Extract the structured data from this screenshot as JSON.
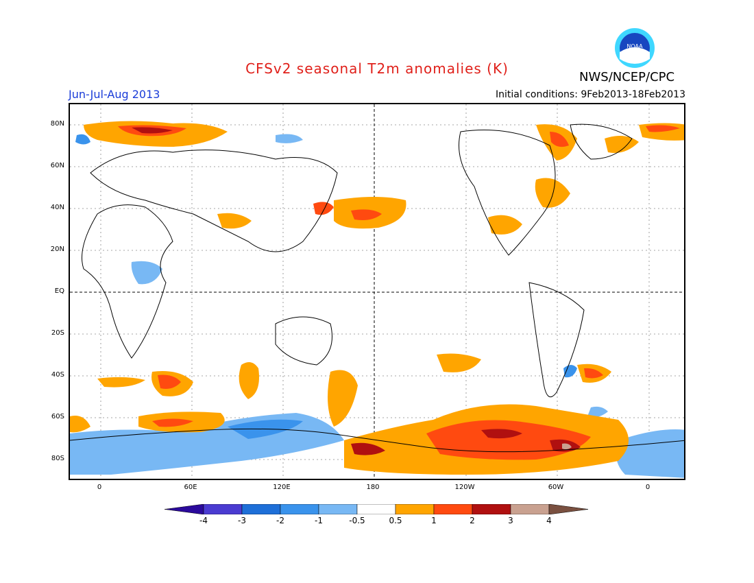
{
  "title": "CFSv2 seasonal T2m anomalies (K)",
  "agency": "NWS/NCEP/CPC",
  "logo_text": "NOAA",
  "season": "Jun-Jul-Aug 2013",
  "initial_conditions": "Initial conditions: 9Feb2013-18Feb2013",
  "lat_labels": [
    "80N",
    "60N",
    "40N",
    "20N",
    "EQ",
    "20S",
    "40S",
    "60S",
    "80S"
  ],
  "lon_labels": [
    "0",
    "60E",
    "120E",
    "180",
    "120W",
    "60W",
    "0"
  ],
  "colorbar": {
    "labels": [
      "-4",
      "-3",
      "-2",
      "-1",
      "-0.5",
      "0.5",
      "1",
      "2",
      "3",
      "4"
    ],
    "colors": [
      "#2b0a9c",
      "#4a3bd1",
      "#1e6fd8",
      "#3a93ec",
      "#78b8f4",
      "#ffffff",
      "#ffa500",
      "#ff4a10",
      "#b01010",
      "#c9a190",
      "#7a5040"
    ]
  },
  "map_colors": {
    "cool1": "#78b8f4",
    "cool2": "#3a93ec",
    "cool3": "#1e6fd8",
    "warm1": "#ffa500",
    "warm2": "#ff4a10",
    "warm3": "#b01010",
    "warm4": "#c9a190"
  }
}
